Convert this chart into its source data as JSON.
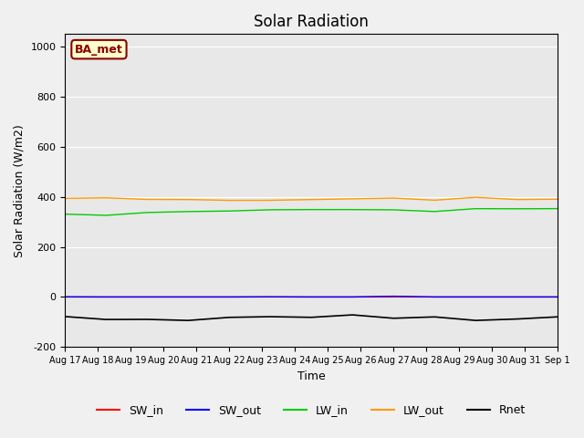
{
  "title": "Solar Radiation",
  "ylabel": "Solar Radiation (W/m2)",
  "xlabel": "Time",
  "ylim": [
    -200,
    1050
  ],
  "yticks": [
    -200,
    0,
    200,
    400,
    600,
    800,
    1000
  ],
  "start_day": 17,
  "end_day": 32,
  "n_days": 16,
  "colors": {
    "SW_in": "#ff0000",
    "SW_out": "#0000ff",
    "LW_in": "#00cc00",
    "LW_out": "#ff9900",
    "Rnet": "#000000"
  },
  "legend_label": "BA_met",
  "background_color": "#e8e8e8",
  "axes_facecolor": "#e8e8e8"
}
